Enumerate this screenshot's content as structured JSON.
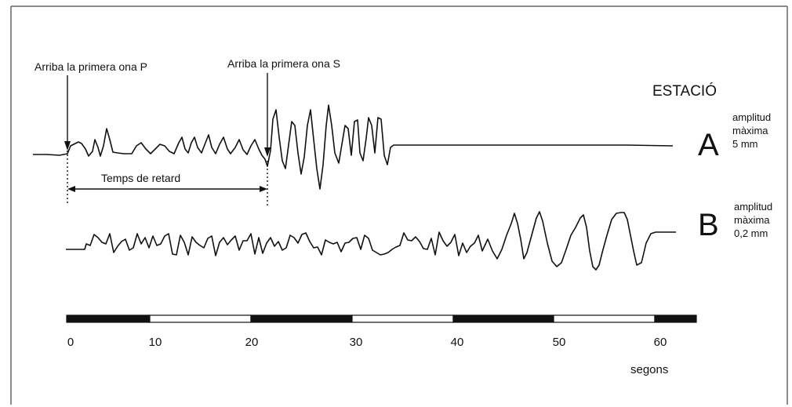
{
  "labels": {
    "arrival_p": "Arriba la primera ona P",
    "arrival_s": "Arriba la primera ona S",
    "station_title": "ESTACIÓ",
    "delay": "Temps de retard",
    "time_unit": "segons"
  },
  "stations": [
    {
      "letter": "A",
      "amp_label_1": "amplitud",
      "amp_label_2": "màxima",
      "amp_value": "5 mm"
    },
    {
      "letter": "B",
      "amp_label_1": "amplitud",
      "amp_label_2": "màxima",
      "amp_value": "0,2 mm"
    }
  ],
  "time_axis": {
    "ticks": [
      "0",
      "10",
      "20",
      "30",
      "40",
      "50",
      "60"
    ]
  },
  "colors": {
    "ink": "#111111",
    "frame": "#555555",
    "background": "#ffffff"
  }
}
